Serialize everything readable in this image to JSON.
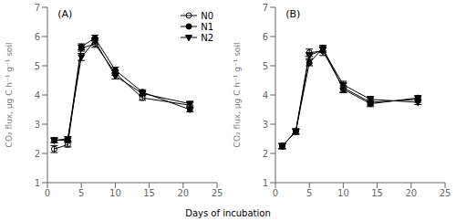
{
  "chart_data": [
    {
      "type": "line",
      "title": "(A)",
      "xlabel": "Days of incubation",
      "ylabel": "CO₂ flux, μg C h⁻¹ g⁻¹ soil",
      "x": [
        1,
        3,
        5,
        7,
        10,
        14,
        21
      ],
      "series": [
        {
          "name": "N0",
          "color": "black",
          "marker": "open_circle",
          "line_style": "solid",
          "values": [
            2.15,
            2.3,
            5.6,
            5.75,
            4.75,
            3.9,
            3.65
          ],
          "errors": [
            0.12,
            0.08,
            0.1,
            0.12,
            0.08,
            0.08,
            0.1
          ]
        },
        {
          "name": "N1",
          "color": "black",
          "marker": "circle",
          "line_style": "solid",
          "values": [
            2.45,
            2.45,
            5.65,
            5.95,
            4.85,
            4.1,
            3.5
          ],
          "errors": [
            0.08,
            0.07,
            0.1,
            0.1,
            0.1,
            0.08,
            0.08
          ]
        },
        {
          "name": "N2",
          "color": "black",
          "marker": "triangle_down",
          "line_style": "solid",
          "values": [
            2.45,
            2.5,
            5.3,
            5.85,
            4.65,
            4.05,
            3.7
          ],
          "errors": [
            0.08,
            0.07,
            0.12,
            0.1,
            0.1,
            0.08,
            0.08
          ]
        }
      ],
      "xlim": [
        0,
        25
      ],
      "xticks": [
        0,
        5,
        10,
        15,
        20,
        25
      ],
      "ylim": [
        1,
        7
      ],
      "yticks": [
        1,
        2,
        3,
        4,
        5,
        6,
        7
      ],
      "legend": "upper right"
    },
    {
      "type": "line",
      "title": "(B)",
      "ylabel": "CO₂ flux, μg C h⁻¹ g⁻¹ soil",
      "x": [
        1,
        3,
        5,
        7,
        10,
        14,
        21
      ],
      "series": [
        {
          "name": "N0",
          "color": "black",
          "marker": "open_circle",
          "line_style": "solid",
          "values": [
            2.25,
            2.75,
            5.45,
            5.5,
            4.25,
            3.75,
            3.85
          ],
          "errors": [
            0.1,
            0.1,
            0.12,
            0.15,
            0.15,
            0.1,
            0.1
          ]
        },
        {
          "name": "N1",
          "color": "black",
          "marker": "circle",
          "line_style": "solid",
          "values": [
            2.25,
            2.75,
            5.1,
            5.6,
            4.2,
            3.7,
            3.9
          ],
          "errors": [
            0.08,
            0.08,
            0.1,
            0.1,
            0.12,
            0.1,
            0.08
          ]
        },
        {
          "name": "N2",
          "color": "black",
          "marker": "triangle_down",
          "line_style": "solid",
          "values": [
            2.25,
            2.75,
            5.35,
            5.55,
            4.35,
            3.85,
            3.75
          ],
          "errors": [
            0.08,
            0.08,
            0.1,
            0.1,
            0.12,
            0.1,
            0.08
          ]
        }
      ],
      "xlim": [
        0,
        25
      ],
      "xticks": [
        0,
        5,
        10,
        15,
        20,
        25
      ],
      "ylim": [
        1,
        7
      ],
      "yticks": [
        1,
        2,
        3,
        4,
        5,
        6,
        7
      ]
    }
  ]
}
